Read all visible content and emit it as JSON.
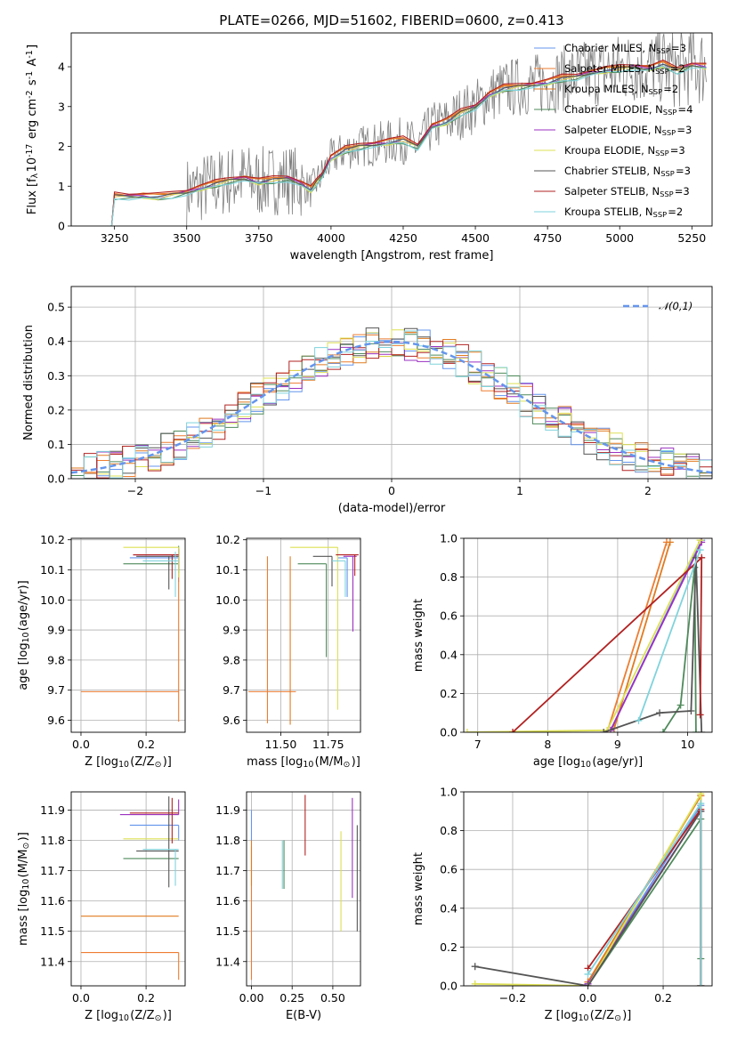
{
  "figure": {
    "title": "PLATE=0266, MJD=51602, FIBERID=0600, z=0.413"
  },
  "model_colors": [
    "#6495ed",
    "#ed7d31",
    "#e07b20",
    "#4f8a5b",
    "#9b30c0",
    "#dde055",
    "#555555",
    "#b22222",
    "#7fd3dc"
  ],
  "chart_data": [
    {
      "id": "spectrum",
      "type": "line",
      "xlabel": "wavelength [Angstrom, rest frame]",
      "ylabel": "Flux [f$_\\lambda$10$^{-17}$ erg cm$^{-2}$ s$^{-1}$ A$^{-1}$]",
      "xlim": [
        3100,
        5320
      ],
      "ylim": [
        0,
        4.85
      ],
      "xticks": [
        3250,
        3500,
        3750,
        4000,
        4250,
        4500,
        4750,
        5000,
        5250
      ],
      "yticks": [
        0,
        1,
        2,
        3,
        4
      ],
      "grid": false,
      "legend_position": "top-right",
      "legend": [
        "Chabrier MILES, N$_{SSP}$=3",
        "Salpeter MILES, N$_{SSP}$=2",
        "Kroupa MILES, N$_{SSP}$=2",
        "Chabrier ELODIE, N$_{SSP}$=4",
        "Salpeter ELODIE, N$_{SSP}$=3",
        "Kroupa ELODIE, N$_{SSP}$=3",
        "Chabrier STELIB, N$_{SSP}$=3",
        "Salpeter STELIB, N$_{SSP}$=3",
        "Kroupa STELIB, N$_{SSP}$=2"
      ],
      "model_curve": {
        "x": [
          3240,
          3250,
          3300,
          3350,
          3400,
          3450,
          3500,
          3550,
          3600,
          3650,
          3700,
          3750,
          3800,
          3850,
          3900,
          3930,
          3950,
          3970,
          4000,
          4050,
          4100,
          4150,
          4200,
          4250,
          4300,
          4350,
          4400,
          4450,
          4500,
          4550,
          4600,
          4650,
          4700,
          4750,
          4800,
          4850,
          4900,
          4950,
          5000,
          5050,
          5100,
          5150,
          5200,
          5250,
          5300
        ],
        "y": [
          0.0,
          0.75,
          0.75,
          0.75,
          0.72,
          0.78,
          0.85,
          0.95,
          1.05,
          1.15,
          1.2,
          1.1,
          1.15,
          1.2,
          1.05,
          0.9,
          1.1,
          1.3,
          1.7,
          1.9,
          2.0,
          2.05,
          2.1,
          2.15,
          2.0,
          2.5,
          2.6,
          2.85,
          3.0,
          3.3,
          3.45,
          3.5,
          3.55,
          3.6,
          3.7,
          3.75,
          3.85,
          3.9,
          3.95,
          4.0,
          3.95,
          4.05,
          3.9,
          4.05,
          4.0
        ]
      },
      "model_offsets": [
        0.0,
        0.05,
        0.05,
        -0.05,
        0.0,
        -0.03,
        0.0,
        0.08,
        -0.06
      ]
    },
    {
      "id": "residuals",
      "type": "histogram",
      "xlabel": "(data-model)/error",
      "ylabel": "Normed distribution",
      "xlim": [
        -2.5,
        2.5
      ],
      "ylim": [
        0,
        0.56
      ],
      "xticks": [
        -2,
        -1,
        0,
        1,
        2
      ],
      "yticks": [
        0.0,
        0.1,
        0.2,
        0.3,
        0.4,
        0.5
      ],
      "grid": true,
      "legend_position": "top-right",
      "reference_curve": {
        "name": "$\\mathcal{N}(0,1)$",
        "mean": 0,
        "sigma": 1
      },
      "bin_width": 0.1
    },
    {
      "id": "age_vs_Z",
      "type": "scatter",
      "xlabel": "Z [log$_{10}$(Z/Z$_\\odot$)]",
      "ylabel": "age  [log$_{10}$(age/yr)]",
      "xlim": [
        -0.03,
        0.32
      ],
      "ylim": [
        9.56,
        10.205
      ],
      "xticks": [
        0.0,
        0.2
      ],
      "yticks": [
        9.6,
        9.7,
        9.8,
        9.9,
        10.0,
        10.1,
        10.2
      ],
      "grid": true,
      "points": [
        {
          "x": 0.3,
          "y": 10.14,
          "xerr": [
            0.15,
            0.0
          ],
          "yerr": [
            0.08,
            0.03
          ],
          "c": 0
        },
        {
          "x": 0.3,
          "y": 9.695,
          "xerr": [
            0.3,
            0.0
          ],
          "yerr": [
            0.1,
            0.4
          ],
          "c": 1
        },
        {
          "x": 0.3,
          "y": 10.12,
          "xerr": [
            0.17,
            0.0
          ],
          "yerr": [
            0.03,
            0.06
          ],
          "c": 3
        },
        {
          "x": 0.3,
          "y": 10.15,
          "xerr": [
            0.14,
            0.0
          ],
          "yerr": [
            0.05,
            0.02
          ],
          "c": 4
        },
        {
          "x": 0.3,
          "y": 10.175,
          "xerr": [
            0.17,
            0.0
          ],
          "yerr": [
            0.1,
            0.0
          ],
          "c": 5
        },
        {
          "x": 0.27,
          "y": 10.145,
          "xerr": [
            0.1,
            0.03
          ],
          "yerr": [
            0.11,
            0.0
          ],
          "c": 6
        },
        {
          "x": 0.28,
          "y": 10.15,
          "xerr": [
            0.12,
            0.02
          ],
          "yerr": [
            0.08,
            0.0
          ],
          "c": 7
        },
        {
          "x": 0.29,
          "y": 10.13,
          "xerr": [
            0.1,
            0.01
          ],
          "yerr": [
            0.12,
            0.03
          ],
          "c": 8
        }
      ]
    },
    {
      "id": "age_vs_mass",
      "type": "scatter",
      "xlabel": "mass [log$_{10}$(M/M$_\\odot$)]",
      "ylabel": "",
      "xlim": [
        11.32,
        11.92
      ],
      "ylim": [
        9.56,
        10.205
      ],
      "xticks": [
        11.5,
        11.75
      ],
      "yticks": [
        9.6,
        9.7,
        9.8,
        9.9,
        10.0,
        10.1,
        10.2
      ],
      "grid": true,
      "points": [
        {
          "x": 11.85,
          "y": 10.14,
          "xerr": [
            0.05,
            0.0
          ],
          "yerr": [
            0.13,
            0.0
          ],
          "c": 0
        },
        {
          "x": 11.43,
          "y": 9.695,
          "xerr": [
            0.1,
            0.15
          ],
          "yerr": [
            0.105,
            0.45
          ],
          "c": 1
        },
        {
          "x": 11.55,
          "y": 9.695,
          "xerr": [
            0.0,
            0.0
          ],
          "yerr": [
            0.11,
            0.45
          ],
          "c": 2
        },
        {
          "x": 11.74,
          "y": 10.12,
          "xerr": [
            0.15,
            0.0
          ],
          "yerr": [
            0.31,
            0.0
          ],
          "c": 3
        },
        {
          "x": 11.88,
          "y": 10.145,
          "xerr": [
            0.05,
            0.02
          ],
          "yerr": [
            0.25,
            0.0
          ],
          "c": 4
        },
        {
          "x": 11.8,
          "y": 10.175,
          "xerr": [
            0.25,
            0.0
          ],
          "yerr": [
            0.54,
            0.0
          ],
          "c": 5
        },
        {
          "x": 11.77,
          "y": 10.145,
          "xerr": [
            0.1,
            0.0
          ],
          "yerr": [
            0.1,
            0.0
          ],
          "c": 6
        },
        {
          "x": 11.89,
          "y": 10.15,
          "xerr": [
            0.1,
            0.02
          ],
          "yerr": [
            0.07,
            0.0
          ],
          "c": 7
        },
        {
          "x": 11.84,
          "y": 10.13,
          "xerr": [
            0.07,
            0.0
          ],
          "yerr": [
            0.12,
            0.0
          ],
          "c": 8
        }
      ]
    },
    {
      "id": "mass_weight_vs_age",
      "type": "line",
      "xlabel": "age  [log$_{10}$(age/yr)]",
      "ylabel": "mass weight",
      "xlim": [
        6.8,
        10.35
      ],
      "ylim": [
        0,
        1.0
      ],
      "xticks": [
        7,
        8,
        9,
        10
      ],
      "yticks": [
        0.0,
        0.2,
        0.4,
        0.6,
        0.8,
        1.0
      ],
      "grid": true,
      "series": [
        {
          "c": 0,
          "x": [
            8.9,
            10.2
          ],
          "y": [
            0.01,
            0.99
          ]
        },
        {
          "c": 1,
          "x": [
            8.85,
            9.7
          ],
          "y": [
            0.0,
            0.98
          ]
        },
        {
          "c": 2,
          "x": [
            8.95,
            9.75
          ],
          "y": [
            0.02,
            0.98
          ]
        },
        {
          "c": 3,
          "x": [
            9.65,
            9.9,
            10.1,
            10.12
          ],
          "y": [
            0.0,
            0.14,
            0.85,
            0.0
          ]
        },
        {
          "c": 4,
          "x": [
            8.9,
            10.2
          ],
          "y": [
            0.01,
            0.98
          ]
        },
        {
          "c": 5,
          "x": [
            6.85,
            8.85,
            10.18
          ],
          "y": [
            0.0,
            0.01,
            0.99
          ]
        },
        {
          "c": 6,
          "x": [
            8.8,
            9.6,
            10.05,
            10.12,
            10.2
          ],
          "y": [
            0.0,
            0.1,
            0.11,
            0.9,
            0.0
          ]
        },
        {
          "c": 7,
          "x": [
            7.5,
            10.2,
            10.18
          ],
          "y": [
            0.0,
            0.9,
            0.09
          ]
        },
        {
          "c": 8,
          "x": [
            9.3,
            10.18
          ],
          "y": [
            0.06,
            0.94
          ]
        }
      ]
    },
    {
      "id": "mass_vs_Z",
      "type": "scatter",
      "xlabel": "Z [log$_{10}$(Z/Z$_\\odot$)]",
      "ylabel": "mass [log$_{10}$(M/M$_\\odot$)]",
      "xlim": [
        -0.03,
        0.32
      ],
      "ylim": [
        11.32,
        11.96
      ],
      "xticks": [
        0.0,
        0.2
      ],
      "yticks": [
        11.4,
        11.5,
        11.6,
        11.7,
        11.8,
        11.9
      ],
      "grid": true,
      "points": [
        {
          "x": 0.3,
          "y": 11.85,
          "xerr": [
            0.15,
            0.0
          ],
          "yerr": [
            0.05,
            0.0
          ],
          "c": 0
        },
        {
          "x": 0.3,
          "y": 11.43,
          "xerr": [
            0.3,
            0.0
          ],
          "yerr": [
            0.09,
            0.0
          ],
          "c": 1
        },
        {
          "x": 0.3,
          "y": 11.55,
          "xerr": [
            0.3,
            0.0
          ],
          "yerr": [
            0.0,
            0.0
          ],
          "c": 2
        },
        {
          "x": 0.3,
          "y": 11.74,
          "xerr": [
            0.17,
            0.0
          ],
          "yerr": [
            0.0,
            0.0
          ],
          "c": 3
        },
        {
          "x": 0.3,
          "y": 11.885,
          "xerr": [
            0.18,
            0.0
          ],
          "yerr": [
            0.0,
            0.05
          ],
          "c": 4
        },
        {
          "x": 0.3,
          "y": 11.805,
          "xerr": [
            0.17,
            0.0
          ],
          "yerr": [
            0.0,
            0.0
          ],
          "c": 5
        },
        {
          "x": 0.27,
          "y": 11.765,
          "xerr": [
            0.1,
            0.03
          ],
          "yerr": [
            0.12,
            0.18
          ],
          "c": 6
        },
        {
          "x": 0.28,
          "y": 11.89,
          "xerr": [
            0.13,
            0.02
          ],
          "yerr": [
            0.1,
            0.05
          ],
          "c": 7
        },
        {
          "x": 0.29,
          "y": 11.77,
          "xerr": [
            0.1,
            0.01
          ],
          "yerr": [
            0.12,
            0.0
          ],
          "c": 8
        }
      ]
    },
    {
      "id": "mass_vs_EBV",
      "type": "scatter",
      "xlabel": "E(B-V)",
      "ylabel": "",
      "xlim": [
        -0.03,
        0.67
      ],
      "ylim": [
        11.32,
        11.96
      ],
      "xticks": [
        0.0,
        0.25,
        0.5
      ],
      "yticks": [
        11.4,
        11.5,
        11.6,
        11.7,
        11.8,
        11.9
      ],
      "grid": true,
      "points": [
        {
          "x": 0.0,
          "y": 11.85,
          "yerr": [
            0.05,
            0.05
          ],
          "c": 0
        },
        {
          "x": 0.0,
          "y": 11.55,
          "yerr": [
            0.21,
            0.23
          ],
          "c": 1
        },
        {
          "x": 0.0,
          "y": 11.7,
          "yerr": [
            0.05,
            0.1
          ],
          "c": 2
        },
        {
          "x": 0.2,
          "y": 11.72,
          "yerr": [
            0.08,
            0.08
          ],
          "c": 3
        },
        {
          "x": 0.62,
          "y": 11.78,
          "yerr": [
            0.17,
            0.16
          ],
          "c": 4
        },
        {
          "x": 0.55,
          "y": 11.67,
          "yerr": [
            0.17,
            0.16
          ],
          "c": 5
        },
        {
          "x": 0.65,
          "y": 11.68,
          "yerr": [
            0.18,
            0.17
          ],
          "c": 6
        },
        {
          "x": 0.33,
          "y": 11.85,
          "yerr": [
            0.1,
            0.1
          ],
          "c": 7
        },
        {
          "x": 0.19,
          "y": 11.72,
          "yerr": [
            0.08,
            0.08
          ],
          "c": 8
        }
      ]
    },
    {
      "id": "mass_weight_vs_Z",
      "type": "line",
      "xlabel": "Z [log$_{10}$(Z/Z$_\\odot$)]",
      "ylabel": "mass weight",
      "xlim": [
        -0.33,
        0.33
      ],
      "ylim": [
        0,
        1.0
      ],
      "xticks": [
        -0.2,
        0.0,
        0.2
      ],
      "yticks": [
        0.0,
        0.2,
        0.4,
        0.6,
        0.8,
        1.0
      ],
      "grid": true,
      "series": [
        {
          "c": 0,
          "x": [
            0.0,
            0.3,
            0.3
          ],
          "y": [
            0.01,
            0.93,
            0.0
          ]
        },
        {
          "c": 1,
          "x": [
            0.0,
            0.3,
            0.3
          ],
          "y": [
            0.02,
            0.98,
            0.0
          ]
        },
        {
          "c": 2,
          "x": [
            0.0,
            0.3,
            0.3
          ],
          "y": [
            0.02,
            0.98,
            0.0
          ]
        },
        {
          "c": 3,
          "x": [
            0.0,
            0.3,
            0.3
          ],
          "y": [
            0.0,
            0.86,
            0.14
          ]
        },
        {
          "c": 4,
          "x": [
            0.0,
            0.3,
            0.3
          ],
          "y": [
            0.01,
            0.9,
            0.0
          ]
        },
        {
          "c": 5,
          "x": [
            -0.3,
            0.0,
            0.3,
            0.3
          ],
          "y": [
            0.01,
            0.0,
            0.99,
            0.0
          ]
        },
        {
          "c": 6,
          "x": [
            -0.3,
            0.0,
            0.3,
            0.3
          ],
          "y": [
            0.1,
            0.0,
            0.9,
            0.0
          ]
        },
        {
          "c": 7,
          "x": [
            0.0,
            0.3,
            0.3
          ],
          "y": [
            0.09,
            0.91,
            0.0
          ]
        },
        {
          "c": 8,
          "x": [
            0.0,
            0.3,
            0.3
          ],
          "y": [
            0.06,
            0.94,
            0.0
          ]
        }
      ]
    }
  ]
}
